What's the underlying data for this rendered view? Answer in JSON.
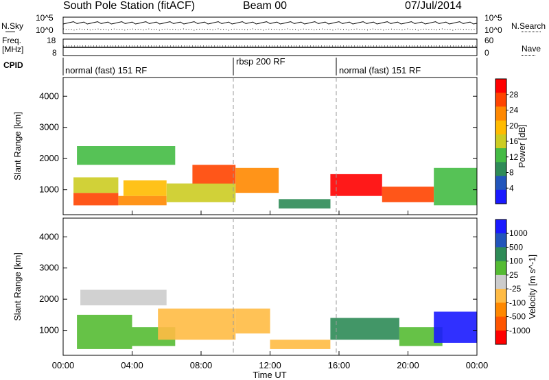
{
  "header": {
    "station": "South Pole Station (fitACF)",
    "beam": "Beam 00",
    "date": "07/Jul/2014"
  },
  "top_panels": {
    "nsky_label": "N.Sky",
    "nsky_ticks": [
      "10^5",
      "10^0"
    ],
    "nsearch_label": "N.Search",
    "nsearch_ticks": [
      "10^5",
      "10^0"
    ],
    "freq_label": "Freq.",
    "freq_unit": "[MHz]",
    "freq_ticks": [
      "18",
      "8"
    ],
    "nave_label": "Nave",
    "nave_ticks": [
      "60",
      "0"
    ],
    "cpid_label": "CPID",
    "cpid_segments": [
      {
        "label": "normal (fast) 151 RF",
        "start": 0,
        "end": 10
      },
      {
        "label": "rbsp 200 RF",
        "start": 10,
        "end": 16
      },
      {
        "label": "normal (fast) 151 RF",
        "start": 16,
        "end": 24
      }
    ]
  },
  "x_axis": {
    "title": "Time UT",
    "ticks": [
      "00:00",
      "04:00",
      "08:00",
      "12:00",
      "16:00",
      "20:00",
      "00:00"
    ]
  },
  "colors": {
    "power": [
      "#1a1aff",
      "#2255bb",
      "#2e8b57",
      "#44bb44",
      "#cccc22",
      "#ffbb00",
      "#ff8800",
      "#ff4400",
      "#ff0000"
    ],
    "velocity": [
      "#ff0000",
      "#ff5500",
      "#ff8800",
      "#ffbb44",
      "#cccccc",
      "#55bb33",
      "#2e8b57",
      "#2255bb",
      "#1a1aff"
    ]
  },
  "chart_data": [
    {
      "type": "heatmap",
      "ylabel": "Slant Range [km]",
      "xlabel": "",
      "x_range": [
        0,
        24
      ],
      "ylim": [
        200,
        4600
      ],
      "yticks": [
        "4000",
        "3000",
        "2000",
        "1000"
      ],
      "colorbar": {
        "label": "Power [dB]",
        "ticks": [
          "28",
          "24",
          "20",
          "16",
          "12",
          "8",
          "4"
        ],
        "range": [
          0,
          30
        ]
      },
      "bands": [
        {
          "x": [
            0.6,
            3.2
          ],
          "y": [
            500,
            900
          ],
          "v": 26
        },
        {
          "x": [
            0.6,
            3.2
          ],
          "y": [
            900,
            1400
          ],
          "v": 14
        },
        {
          "x": [
            3.2,
            6.0
          ],
          "y": [
            500,
            800
          ],
          "v": 22
        },
        {
          "x": [
            3.5,
            6.0
          ],
          "y": [
            800,
            1300
          ],
          "v": 18
        },
        {
          "x": [
            6.0,
            10.0
          ],
          "y": [
            600,
            1200
          ],
          "v": 16
        },
        {
          "x": [
            0.8,
            6.5
          ],
          "y": [
            1800,
            2400
          ],
          "v": 10
        },
        {
          "x": [
            7.5,
            10.0
          ],
          "y": [
            1200,
            1800
          ],
          "v": 24
        },
        {
          "x": [
            10.0,
            12.5
          ],
          "y": [
            900,
            1700
          ],
          "v": 20
        },
        {
          "x": [
            12.5,
            15.5
          ],
          "y": [
            400,
            700
          ],
          "v": 8
        },
        {
          "x": [
            15.5,
            18.5
          ],
          "y": [
            800,
            1500
          ],
          "v": 27
        },
        {
          "x": [
            18.5,
            21.5
          ],
          "y": [
            600,
            1100
          ],
          "v": 25
        },
        {
          "x": [
            21.5,
            24.0
          ],
          "y": [
            500,
            1700
          ],
          "v": 10
        }
      ]
    },
    {
      "type": "heatmap",
      "ylabel": "Slant Range [km]",
      "xlabel": "Time UT",
      "x_range": [
        0,
        24
      ],
      "ylim": [
        200,
        4600
      ],
      "yticks": [
        "4000",
        "3000",
        "2000",
        "1000"
      ],
      "colorbar": {
        "label": "Velocity [m s^-1]",
        "ticks": [
          "1000",
          "500",
          "100",
          "25",
          "-25",
          "-100",
          "-500",
          "-1000"
        ],
        "range": [
          -1000,
          1000
        ]
      },
      "bands": [
        {
          "x": [
            0.8,
            4.0
          ],
          "y": [
            400,
            1500
          ],
          "v": 150
        },
        {
          "x": [
            1.0,
            6.0
          ],
          "y": [
            1800,
            2300
          ],
          "v": 0
        },
        {
          "x": [
            4.0,
            6.5
          ],
          "y": [
            500,
            1100
          ],
          "v": 150
        },
        {
          "x": [
            5.5,
            10.0
          ],
          "y": [
            700,
            1700
          ],
          "v": -150
        },
        {
          "x": [
            10.0,
            12.0
          ],
          "y": [
            900,
            1700
          ],
          "v": -200
        },
        {
          "x": [
            12.0,
            15.5
          ],
          "y": [
            400,
            700
          ],
          "v": -300
        },
        {
          "x": [
            15.5,
            19.5
          ],
          "y": [
            700,
            1400
          ],
          "v": 400
        },
        {
          "x": [
            19.5,
            22.0
          ],
          "y": [
            500,
            1100
          ],
          "v": 200
        },
        {
          "x": [
            21.5,
            24.0
          ],
          "y": [
            600,
            1600
          ],
          "v": 800
        }
      ]
    }
  ]
}
